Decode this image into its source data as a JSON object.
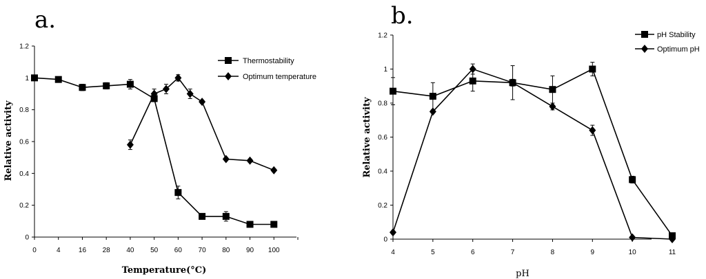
{
  "chart_data": [
    {
      "type": "line",
      "panel_label": "a.",
      "xlabel": "Temperature(°C)",
      "ylabel": "Relative activity",
      "ylim": [
        0,
        1.2
      ],
      "yticks": [
        "0",
        "0.2",
        "0.4",
        "0.6",
        "0.8",
        "1",
        "1.2"
      ],
      "categories": [
        "0",
        "4",
        "16",
        "28",
        "40",
        "50",
        "60",
        "70",
        "80",
        "90",
        "100"
      ],
      "legend_position": "top-right",
      "series": [
        {
          "name": "Thermostability",
          "marker": "square",
          "points": [
            {
              "x": 0,
              "y": 1.0,
              "err": 0.01
            },
            {
              "x": 4,
              "y": 0.99,
              "err": 0.01
            },
            {
              "x": 16,
              "y": 0.94,
              "err": 0.02
            },
            {
              "x": 28,
              "y": 0.95,
              "err": 0.02
            },
            {
              "x": 40,
              "y": 0.96,
              "err": 0.03
            },
            {
              "x": 50,
              "y": 0.87,
              "err": 0.02
            },
            {
              "x": 60,
              "y": 0.28,
              "err": 0.04
            },
            {
              "x": 70,
              "y": 0.13,
              "err": 0.01
            },
            {
              "x": 80,
              "y": 0.13,
              "err": 0.03
            },
            {
              "x": 90,
              "y": 0.08,
              "err": 0.01
            },
            {
              "x": 100,
              "y": 0.08,
              "err": 0.01
            }
          ]
        },
        {
          "name": "Optimum temperature",
          "marker": "diamond",
          "points": [
            {
              "x": 40,
              "y": 0.58,
              "err": 0.03
            },
            {
              "x": 50,
              "y": 0.9,
              "err": 0.03
            },
            {
              "x": 55,
              "y": 0.93,
              "err": 0.03
            },
            {
              "x": 60,
              "y": 1.0,
              "err": 0.02
            },
            {
              "x": 65,
              "y": 0.9,
              "err": 0.03
            },
            {
              "x": 70,
              "y": 0.85,
              "err": 0.01
            },
            {
              "x": 80,
              "y": 0.49,
              "err": 0.01
            },
            {
              "x": 90,
              "y": 0.48,
              "err": 0.01
            },
            {
              "x": 100,
              "y": 0.42,
              "err": 0.01
            }
          ]
        }
      ]
    },
    {
      "type": "line",
      "panel_label": "b.",
      "xlabel": "pH",
      "ylabel": "Relative activity",
      "ylim": [
        0,
        1.2
      ],
      "yticks": [
        "0",
        "0.2",
        "0.4",
        "0.6",
        "0.8",
        "1",
        "1.2"
      ],
      "categories": [
        "4",
        "5",
        "6",
        "7",
        "8",
        "9",
        "10",
        "11"
      ],
      "legend_position": "top-right",
      "series": [
        {
          "name": "pH Stability",
          "marker": "square",
          "points": [
            {
              "x": 4,
              "y": 0.87,
              "err": 0.08
            },
            {
              "x": 5,
              "y": 0.84,
              "err": 0.08
            },
            {
              "x": 6,
              "y": 0.93,
              "err": 0.06
            },
            {
              "x": 7,
              "y": 0.92,
              "err": 0.1
            },
            {
              "x": 8,
              "y": 0.88,
              "err": 0.08
            },
            {
              "x": 9,
              "y": 1.0,
              "err": 0.04
            },
            {
              "x": 10,
              "y": 0.35,
              "err": 0.02
            },
            {
              "x": 11,
              "y": 0.02,
              "err": 0.005
            }
          ]
        },
        {
          "name": "Optimum pH",
          "marker": "diamond",
          "points": [
            {
              "x": 4,
              "y": 0.04,
              "err": 0.0
            },
            {
              "x": 5,
              "y": 0.75,
              "err": 0.0
            },
            {
              "x": 6,
              "y": 1.0,
              "err": 0.03
            },
            {
              "x": 7,
              "y": 0.92,
              "err": 0.02
            },
            {
              "x": 8,
              "y": 0.78,
              "err": 0.02
            },
            {
              "x": 9,
              "y": 0.64,
              "err": 0.03
            },
            {
              "x": 10,
              "y": 0.01,
              "err": 0.0
            },
            {
              "x": 11,
              "y": 0.0,
              "err": 0.0
            }
          ]
        }
      ]
    }
  ]
}
